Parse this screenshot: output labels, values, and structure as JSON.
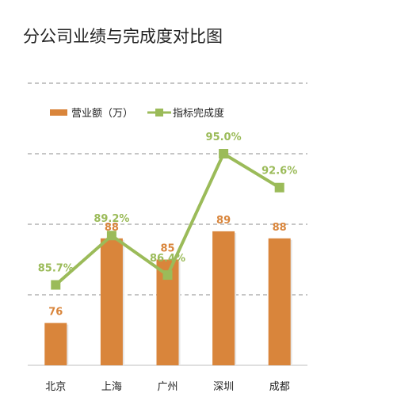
{
  "chart_data": {
    "type": "bar",
    "title": "分公司业绩与完成度对比图",
    "categories": [
      "北京",
      "上海",
      "广州",
      "深圳",
      "成都"
    ],
    "series": [
      {
        "name": "营业额（万）",
        "type": "bar",
        "axis": "left",
        "values": [
          76,
          88,
          85,
          89,
          88
        ],
        "labels": [
          "76",
          "88",
          "85",
          "89",
          "88"
        ],
        "color": "#D9853B"
      },
      {
        "name": "指标完成度",
        "type": "line",
        "axis": "right",
        "values": [
          0.857,
          0.892,
          0.864,
          0.95,
          0.926
        ],
        "labels": [
          "85.7%",
          "89.2%",
          "86.4%",
          "95.0%",
          "92.6%"
        ],
        "color": "#9BBB59"
      }
    ],
    "bar_axis": {
      "ylim": [
        70,
        90
      ]
    },
    "line_axis": {
      "ylim": [
        0.8,
        1.0
      ]
    },
    "legend_position": "top-left",
    "grid": true
  }
}
